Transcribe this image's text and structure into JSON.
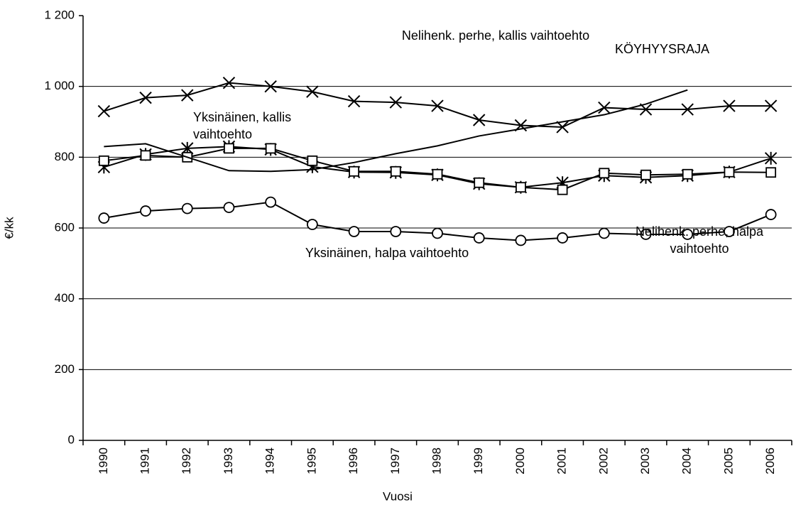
{
  "chart_data": {
    "type": "line",
    "x_label": "Vuosi",
    "y_label": "€/kk",
    "categories": [
      "1990",
      "1991",
      "1992",
      "1993",
      "1994",
      "1995",
      "1996",
      "1997",
      "1998",
      "1999",
      "2000",
      "2001",
      "2002",
      "2003",
      "2004",
      "2005",
      "2006"
    ],
    "ylim": [
      0,
      1200
    ],
    "yticks": [
      0,
      200,
      400,
      600,
      800,
      {
        "value": 1000,
        "label": "1 000"
      },
      {
        "value": 1200,
        "label": "1 200"
      }
    ],
    "grid": true,
    "series": [
      {
        "name": "Nelihenk. perhe, kallis vaihtoehto",
        "color": "#000000",
        "marker": "x",
        "values": [
          930,
          968,
          975,
          1010,
          1000,
          985,
          958,
          955,
          945,
          905,
          890,
          885,
          940,
          935,
          935,
          945,
          945
        ]
      },
      {
        "name": "Yksinäinen, kallis vaihtoehto",
        "color": "#000000",
        "marker": "asterisk",
        "values": [
          772,
          808,
          825,
          830,
          822,
          773,
          758,
          757,
          750,
          725,
          715,
          728,
          748,
          743,
          748,
          758,
          797
        ]
      },
      {
        "name": "Nelihenk. perhe, halpa vaihtoehto",
        "color": "#000000",
        "marker": "square",
        "values": [
          790,
          805,
          800,
          825,
          825,
          790,
          760,
          760,
          752,
          728,
          715,
          708,
          755,
          750,
          752,
          758,
          757
        ]
      },
      {
        "name": "Yksinäinen, halpa vaihtoehto",
        "color": "#000000",
        "marker": "circle",
        "values": [
          628,
          648,
          655,
          658,
          673,
          610,
          590,
          590,
          585,
          572,
          565,
          572,
          585,
          582,
          582,
          590,
          638
        ]
      },
      {
        "name": "KÖYHYYSRAJA",
        "color": "#000000",
        "marker": "none",
        "values": [
          830,
          838,
          800,
          762,
          760,
          765,
          785,
          810,
          832,
          860,
          880,
          900,
          920,
          950,
          990,
          null,
          null
        ]
      }
    ]
  }
}
